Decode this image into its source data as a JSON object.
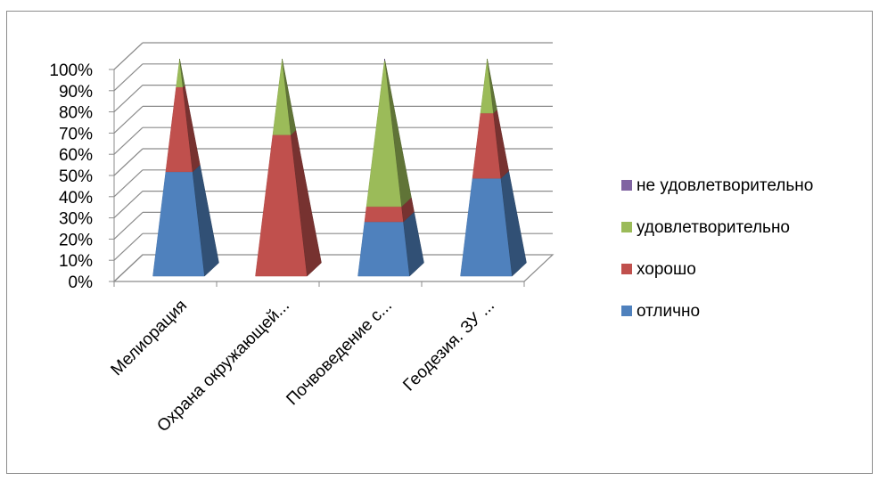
{
  "chart_data": {
    "type": "bar",
    "subtype": "3d-stacked-100-pyramid",
    "title": "",
    "xlabel": "",
    "ylabel": "",
    "ylim": [
      0,
      100
    ],
    "y_ticks": [
      "0%",
      "10%",
      "20%",
      "30%",
      "40%",
      "50%",
      "60%",
      "70%",
      "80%",
      "90%",
      "100%"
    ],
    "categories": [
      "Мелиорация",
      "Охрана окружающей...",
      "Почвоведение с...",
      "Геодезия. ЗУ ..."
    ],
    "series": [
      {
        "name": "отлично",
        "color": "#4f81bd",
        "values": [
          48,
          0,
          25,
          45
        ]
      },
      {
        "name": "хорошо",
        "color": "#c0504d",
        "values": [
          39,
          65,
          7,
          30
        ]
      },
      {
        "name": "удовлетворительно",
        "color": "#9bbb59",
        "values": [
          13,
          35,
          67,
          25
        ]
      },
      {
        "name": "не удовлетворительно",
        "color": "#8064a2",
        "values": [
          0,
          0,
          1,
          0
        ]
      }
    ],
    "legend_position": "right",
    "grid": true
  }
}
